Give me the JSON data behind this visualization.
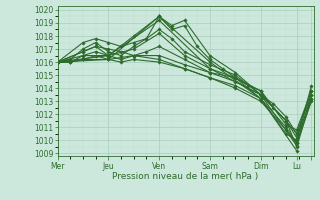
{
  "xlabel": "Pression niveau de la mer( hPa )",
  "xlim": [
    0,
    121
  ],
  "ylim": [
    1008.8,
    1020.3
  ],
  "yticks": [
    1009,
    1010,
    1011,
    1012,
    1013,
    1014,
    1015,
    1016,
    1017,
    1018,
    1019,
    1020
  ],
  "xtick_positions": [
    0,
    24,
    48,
    72,
    96,
    113,
    120
  ],
  "xtick_labels": [
    "Mer",
    "Jeu",
    "Ven",
    "Sam",
    "Dim",
    "Lu",
    ""
  ],
  "bg_color": "#cce8dc",
  "grid_major_color": "#aaccbb",
  "grid_minor_color": "#c0ddd0",
  "line_color": "#2d6b2d",
  "markersize": 1.8,
  "linewidth": 0.8,
  "lines": [
    {
      "x": [
        0,
        24,
        48,
        72,
        96,
        113
      ],
      "y": [
        1016.0,
        1016.2,
        1019.5,
        1016.0,
        1013.2,
        1009.2
      ]
    },
    {
      "x": [
        0,
        24,
        48,
        72,
        96,
        113
      ],
      "y": [
        1016.0,
        1016.5,
        1019.2,
        1015.5,
        1013.5,
        1009.6
      ]
    },
    {
      "x": [
        0,
        12,
        18,
        24,
        36,
        48,
        54,
        60,
        72,
        84,
        96,
        102,
        108,
        113,
        120
      ],
      "y": [
        1016.0,
        1016.8,
        1017.2,
        1016.5,
        1018.0,
        1019.5,
        1018.8,
        1019.2,
        1016.5,
        1015.2,
        1013.5,
        1012.8,
        1011.8,
        1010.5,
        1013.5
      ]
    },
    {
      "x": [
        0,
        6,
        12,
        18,
        24,
        30,
        36,
        42,
        48,
        54,
        60,
        66,
        72,
        78,
        84,
        90,
        96,
        102,
        108,
        113,
        120
      ],
      "y": [
        1016.0,
        1016.2,
        1017.0,
        1017.5,
        1016.8,
        1016.5,
        1017.2,
        1017.8,
        1019.5,
        1018.5,
        1018.8,
        1017.2,
        1016.2,
        1015.5,
        1014.8,
        1014.2,
        1013.8,
        1012.5,
        1011.5,
        1010.5,
        1013.8
      ]
    },
    {
      "x": [
        0,
        6,
        12,
        18,
        24,
        30,
        36,
        48,
        60,
        72,
        84,
        96,
        108,
        113,
        120
      ],
      "y": [
        1016.0,
        1016.0,
        1016.5,
        1016.8,
        1016.5,
        1016.2,
        1016.5,
        1016.5,
        1015.8,
        1015.2,
        1014.5,
        1013.5,
        1011.5,
        1009.5,
        1013.2
      ]
    },
    {
      "x": [
        0,
        6,
        12,
        18,
        24,
        30,
        36,
        48,
        60,
        72,
        84,
        96,
        108,
        113,
        120
      ],
      "y": [
        1016.0,
        1016.0,
        1016.2,
        1016.5,
        1016.2,
        1016.0,
        1016.2,
        1016.0,
        1015.5,
        1014.8,
        1014.0,
        1013.0,
        1010.8,
        1009.8,
        1013.5
      ]
    },
    {
      "x": [
        0,
        6,
        12,
        24,
        36,
        48,
        60,
        72,
        84,
        96,
        108,
        113,
        120
      ],
      "y": [
        1016.0,
        1016.0,
        1016.2,
        1016.2,
        1016.5,
        1016.2,
        1015.5,
        1014.8,
        1014.2,
        1013.2,
        1010.5,
        1010.0,
        1014.2
      ]
    },
    {
      "x": [
        0,
        12,
        24,
        36,
        48,
        60,
        72,
        84,
        96,
        108,
        113,
        120
      ],
      "y": [
        1016.0,
        1016.5,
        1016.5,
        1017.0,
        1018.2,
        1016.5,
        1015.5,
        1014.8,
        1013.8,
        1011.2,
        1010.8,
        1013.8
      ]
    },
    {
      "x": [
        0,
        12,
        18,
        24,
        30,
        36,
        42,
        48,
        54,
        60,
        72,
        84,
        96,
        108,
        113,
        120
      ],
      "y": [
        1016.0,
        1017.5,
        1017.8,
        1017.5,
        1017.2,
        1017.5,
        1017.8,
        1018.5,
        1017.8,
        1016.8,
        1015.8,
        1015.0,
        1013.5,
        1011.5,
        1010.2,
        1013.2
      ]
    },
    {
      "x": [
        0,
        12,
        18,
        24,
        30,
        36,
        42,
        48,
        60,
        72,
        84,
        96,
        108,
        113,
        120
      ],
      "y": [
        1016.0,
        1016.8,
        1017.2,
        1017.0,
        1016.8,
        1016.5,
        1016.8,
        1017.2,
        1016.2,
        1015.2,
        1014.8,
        1013.2,
        1011.0,
        1009.8,
        1013.0
      ]
    }
  ]
}
